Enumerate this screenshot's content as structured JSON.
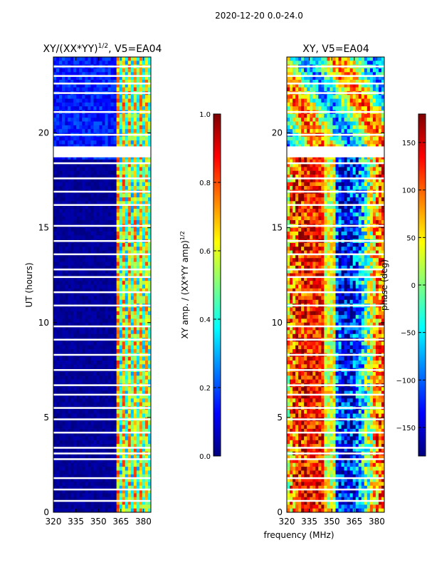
{
  "suptitle": "2020-12-20 0.0-24.0",
  "xlabel_shared": "frequency (MHz)",
  "colors": {
    "jet": [
      "#00007f",
      "#0000ff",
      "#007fff",
      "#00ffff",
      "#7fff7f",
      "#ffff00",
      "#ff7f00",
      "#ff0000",
      "#7f0000"
    ]
  },
  "chart_data": [
    {
      "type": "heatmap",
      "title": "XY/(XX*YY)",
      "title_sup": "1/2",
      "title_suffix": ", V5=EA04",
      "xlabel": "",
      "ylabel": "UT (hours)",
      "xlim": [
        320,
        385
      ],
      "ylim": [
        0,
        24
      ],
      "xticks": [
        320,
        335,
        350,
        365,
        380
      ],
      "yticks": [
        0,
        5,
        10,
        15,
        20
      ],
      "gaps_hours": [
        0.6,
        1.2,
        1.8,
        2.8,
        3.1,
        3.4,
        4.2,
        4.9,
        5.5,
        6.2,
        6.7,
        7.5,
        8.3,
        9.1,
        9.8,
        10.9,
        11.6,
        12.4,
        12.8,
        13.6,
        14.3,
        15.1,
        16.2,
        16.9,
        17.6,
        18.4,
        18.9,
        19.1,
        19.9,
        21.1,
        22.1,
        22.6,
        23.0,
        23.5
      ],
      "colorbar": {
        "label": "XY amp. / (XX*YY amp)",
        "label_sup": "1/2",
        "range": [
          0.0,
          1.0
        ],
        "ticks": [
          0.0,
          0.2,
          0.4,
          0.6,
          0.8,
          1.0
        ],
        "tick_labels": [
          "0.0",
          "0.2",
          "0.4",
          "0.6",
          "0.8",
          "1.0"
        ]
      }
    },
    {
      "type": "heatmap",
      "title": "XY, V5=EA04",
      "xlabel": "frequency (MHz)",
      "ylabel": "",
      "xlim": [
        320,
        385
      ],
      "ylim": [
        0,
        24
      ],
      "xticks": [
        320,
        335,
        350,
        365,
        380
      ],
      "yticks": [
        0,
        5,
        10,
        15,
        20
      ],
      "gaps_hours": [
        0.6,
        1.2,
        1.8,
        2.8,
        3.1,
        3.4,
        4.2,
        4.9,
        5.5,
        6.2,
        6.7,
        7.5,
        8.3,
        9.1,
        9.8,
        10.9,
        11.6,
        12.4,
        12.8,
        13.6,
        14.3,
        15.1,
        16.2,
        16.9,
        17.6,
        18.4,
        18.9,
        19.1,
        19.9,
        21.1,
        22.1,
        22.6,
        23.0,
        23.5
      ],
      "colorbar": {
        "label": "phase (deg)",
        "range": [
          -180,
          180
        ],
        "ticks": [
          -150,
          -100,
          -50,
          0,
          50,
          100,
          150
        ],
        "tick_labels": [
          "−150",
          "−100",
          "−50",
          "0",
          "50",
          "100",
          "150"
        ]
      }
    }
  ]
}
